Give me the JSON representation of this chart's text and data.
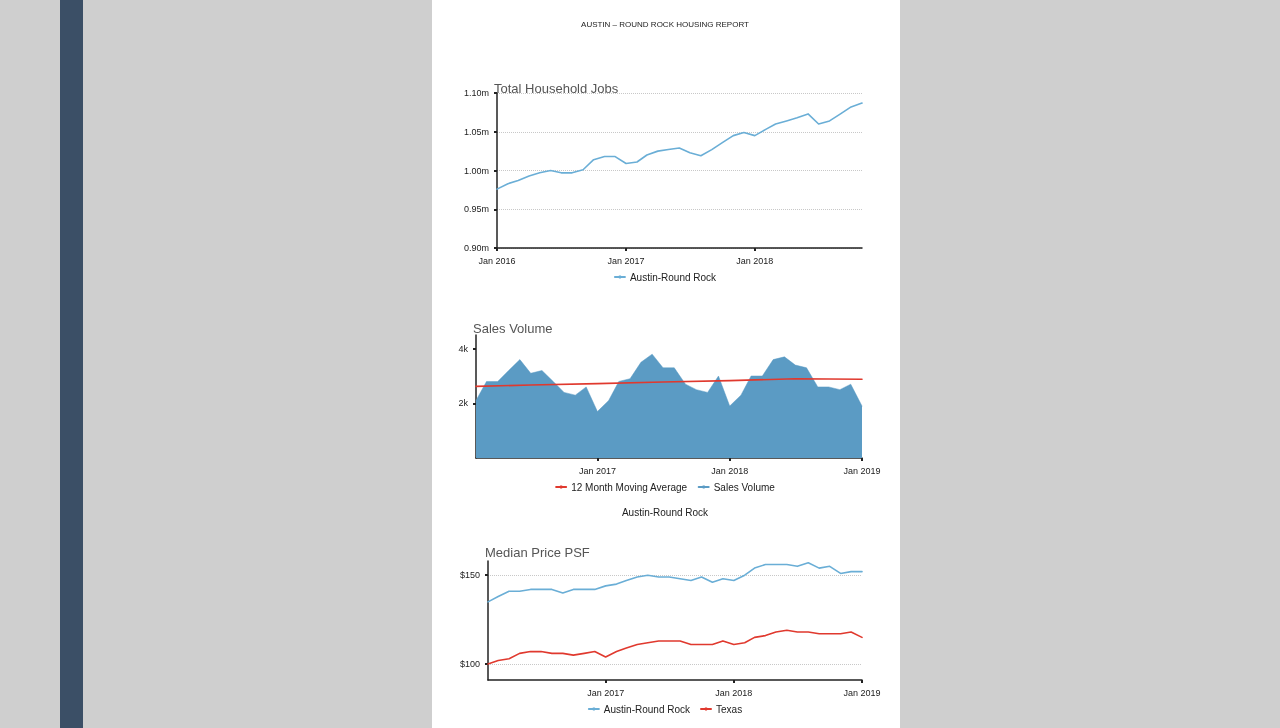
{
  "chart_data": [
    {
      "type": "line",
      "title": "Total Household Jobs",
      "annotations": [
        "AUSTIN – ROUND ROCK HOUSING REPORT"
      ],
      "x": [
        "2016-01",
        "2016-02",
        "2016-03",
        "2016-04",
        "2016-05",
        "2016-06",
        "2016-07",
        "2016-08",
        "2016-09",
        "2016-10",
        "2016-11",
        "2016-12",
        "2017-01",
        "2017-02",
        "2017-03",
        "2017-04",
        "2017-05",
        "2017-06",
        "2017-07",
        "2017-08",
        "2017-09",
        "2017-10",
        "2017-11",
        "2017-12",
        "2018-01",
        "2018-02",
        "2018-03",
        "2018-04",
        "2018-05",
        "2018-06",
        "2018-07",
        "2018-08",
        "2018-09",
        "2018-10",
        "2018-11"
      ],
      "series": [
        {
          "name": "Austin-Round Rock",
          "color": "#6aaed6",
          "values": [
            0.976,
            0.983,
            0.987,
            0.993,
            0.997,
            1.0,
            0.997,
            0.997,
            1.001,
            1.014,
            1.018,
            1.018,
            1.009,
            1.011,
            1.02,
            1.025,
            1.027,
            1.029,
            1.023,
            1.019,
            1.027,
            1.036,
            1.045,
            1.049,
            1.045,
            1.053,
            1.06,
            1.064,
            1.068,
            1.073,
            1.06,
            1.064,
            1.073,
            1.082,
            1.087
          ]
        }
      ],
      "xlim": [
        "2016-01",
        "2018-11"
      ],
      "xticks": [
        {
          "value": "2016-01",
          "label": "Jan 2016"
        },
        {
          "value": "2017-01",
          "label": "Jan 2017"
        },
        {
          "value": "2018-01",
          "label": "Jan 2018"
        }
      ],
      "ylim": [
        0.9,
        1.1
      ],
      "yticks": [
        {
          "value": 0.9,
          "label": "0.90m"
        },
        {
          "value": 0.95,
          "label": "0.95m"
        },
        {
          "value": 1.0,
          "label": "1.00m"
        },
        {
          "value": 1.05,
          "label": "1.05m"
        },
        {
          "value": 1.1,
          "label": "1.10m"
        }
      ],
      "grid": "y",
      "legend": "bottom"
    },
    {
      "type": "area",
      "title": "Sales Volume",
      "annotations": [
        "Austin-Round Rock"
      ],
      "x": [
        "2016-02",
        "2016-03",
        "2016-04",
        "2016-05",
        "2016-06",
        "2016-07",
        "2016-08",
        "2016-09",
        "2016-10",
        "2016-11",
        "2016-12",
        "2017-01",
        "2017-02",
        "2017-03",
        "2017-04",
        "2017-05",
        "2017-06",
        "2017-07",
        "2017-08",
        "2017-09",
        "2017-10",
        "2017-11",
        "2017-12",
        "2018-01",
        "2018-02",
        "2018-03",
        "2018-04",
        "2018-05",
        "2018-06",
        "2018-07",
        "2018-08",
        "2018-09",
        "2018-10",
        "2018-11",
        "2018-12",
        "2019-01"
      ],
      "series": [
        {
          "name": "12 Month Moving Average",
          "type": "line",
          "color": "#e0392e",
          "x": [
            "2016-02",
            "2016-07",
            "2017-01",
            "2017-07",
            "2018-01",
            "2018-07",
            "2019-01"
          ],
          "values": [
            2620,
            2670,
            2720,
            2780,
            2830,
            2900,
            2880
          ]
        },
        {
          "name": "Sales Volume",
          "color": "#5b9bc4",
          "values": [
            2100,
            2800,
            2800,
            3200,
            3600,
            3100,
            3200,
            2800,
            2400,
            2300,
            2600,
            1700,
            2100,
            2800,
            2900,
            3500,
            3800,
            3300,
            3300,
            2700,
            2500,
            2400,
            3000,
            1900,
            2300,
            3000,
            3000,
            3600,
            3700,
            3400,
            3300,
            2600,
            2600,
            2500,
            2700,
            1900
          ]
        }
      ],
      "xlim": [
        "2016-02",
        "2019-01"
      ],
      "xticks": [
        {
          "value": "2017-01",
          "label": "Jan 2017"
        },
        {
          "value": "2018-01",
          "label": "Jan 2018"
        },
        {
          "value": "2019-01",
          "label": "Jan 2019"
        }
      ],
      "ylim": [
        0,
        4500
      ],
      "yticks": [
        {
          "value": 2000,
          "label": "2k"
        },
        {
          "value": 4000,
          "label": "4k"
        }
      ],
      "legend": "bottom"
    },
    {
      "type": "line",
      "title": "Median Price PSF",
      "x": [
        "2016-02",
        "2016-03",
        "2016-04",
        "2016-05",
        "2016-06",
        "2016-07",
        "2016-08",
        "2016-09",
        "2016-10",
        "2016-11",
        "2016-12",
        "2017-01",
        "2017-02",
        "2017-03",
        "2017-04",
        "2017-05",
        "2017-06",
        "2017-07",
        "2017-08",
        "2017-09",
        "2017-10",
        "2017-11",
        "2017-12",
        "2018-01",
        "2018-02",
        "2018-03",
        "2018-04",
        "2018-05",
        "2018-06",
        "2018-07",
        "2018-08",
        "2018-09",
        "2018-10",
        "2018-11",
        "2018-12",
        "2019-01"
      ],
      "series": [
        {
          "name": "Austin-Round Rock",
          "color": "#6aaed6",
          "values": [
            135,
            138,
            141,
            141,
            142,
            142,
            142,
            140,
            142,
            142,
            142,
            144,
            145,
            147,
            149,
            150,
            149,
            149,
            148,
            147,
            149,
            146,
            148,
            147,
            150,
            154,
            156,
            156,
            156,
            155,
            157,
            154,
            155,
            151,
            152,
            152
          ]
        },
        {
          "name": "Texas",
          "color": "#e0392e",
          "values": [
            100,
            102,
            103,
            106,
            107,
            107,
            106,
            106,
            105,
            106,
            107,
            104,
            107,
            109,
            111,
            112,
            113,
            113,
            113,
            111,
            111,
            111,
            113,
            111,
            112,
            115,
            116,
            118,
            119,
            118,
            118,
            117,
            117,
            117,
            118,
            115
          ]
        }
      ],
      "xlim": [
        "2016-02",
        "2019-01"
      ],
      "xticks": [
        {
          "value": "2017-01",
          "label": "Jan 2017"
        },
        {
          "value": "2018-01",
          "label": "Jan 2018"
        },
        {
          "value": "2019-01",
          "label": "Jan 2019"
        }
      ],
      "ylim": [
        91,
        158
      ],
      "yticks": [
        {
          "value": 100,
          "label": "$100"
        },
        {
          "value": 150,
          "label": "$150"
        }
      ],
      "grid": "y",
      "legend": "bottom"
    }
  ]
}
